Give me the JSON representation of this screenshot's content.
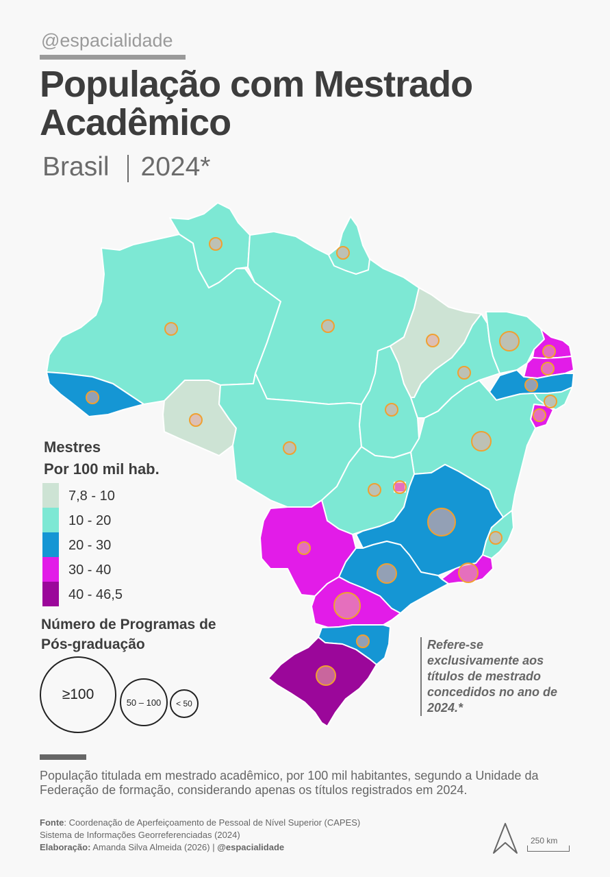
{
  "header": {
    "handle": "@espacialidade",
    "title": "População com Mestrado Acadêmico",
    "region": "Brasil",
    "year": "2024*"
  },
  "colors": {
    "c1": "#cde3d4",
    "c2": "#7de8d4",
    "c3": "#1596d4",
    "c4": "#e21ce8",
    "c5": "#9b079a",
    "bubble_fill": "#e8a7a0",
    "bubble_stroke": "#f0a030"
  },
  "legend_color": {
    "title_line1": "Mestres",
    "title_line2": "Por 100 mil hab.",
    "classes": [
      {
        "label": "7,8 - 10",
        "color": "#cde3d4"
      },
      {
        "label": "10 - 20",
        "color": "#7de8d4"
      },
      {
        "label": "20 - 30",
        "color": "#1596d4"
      },
      {
        "label": "30 - 40",
        "color": "#e21ce8"
      },
      {
        "label": "40 - 46,5",
        "color": "#9b079a"
      }
    ]
  },
  "legend_size": {
    "title_line1": "Número de Programas de",
    "title_line2": "Pós-graduação",
    "sizes": [
      {
        "label": "≥100"
      },
      {
        "label": "50 – 100"
      },
      {
        "label": "< 50"
      }
    ]
  },
  "note": "Refere-se exclusivamente aos títulos de mestrado concedidos no ano de 2024.*",
  "description": "População titulada em mestrado  acadêmico, por 100 mil habitantes, segundo a Unidade da Federação de formação, considerando apenas os títulos registrados em 2024.",
  "source": {
    "fonte_label": "Fonte",
    "fonte_text": ": Coordenação de Aperfeiçoamento de Pessoal de Nível Superior (CAPES)",
    "line2": "Sistema de Informações Georreferenciadas (2024)",
    "elab_label": "Elaboração:",
    "elab_text": " Amanda Silva Almeida (2026) | ",
    "elab_handle": "@espacialidade"
  },
  "scale": {
    "label": "250 km"
  },
  "map_states": [
    {
      "code": "AC",
      "class": 3,
      "programs": "< 50"
    },
    {
      "code": "AM",
      "class": 2,
      "programs": "< 50"
    },
    {
      "code": "RR",
      "class": 2,
      "programs": "< 50"
    },
    {
      "code": "PA",
      "class": 2,
      "programs": "< 50"
    },
    {
      "code": "AP",
      "class": 2,
      "programs": "< 50"
    },
    {
      "code": "RO",
      "class": 1,
      "programs": "< 50"
    },
    {
      "code": "MT",
      "class": 2,
      "programs": "< 50"
    },
    {
      "code": "TO",
      "class": 2,
      "programs": "< 50"
    },
    {
      "code": "MA",
      "class": 1,
      "programs": "< 50"
    },
    {
      "code": "PI",
      "class": 2,
      "programs": "< 50"
    },
    {
      "code": "CE",
      "class": 2,
      "programs": "50 – 100"
    },
    {
      "code": "RN",
      "class": 4,
      "programs": "< 50"
    },
    {
      "code": "PB",
      "class": 4,
      "programs": "< 50"
    },
    {
      "code": "PE",
      "class": 3,
      "programs": "< 50"
    },
    {
      "code": "AL",
      "class": 2,
      "programs": "< 50"
    },
    {
      "code": "SE",
      "class": 4,
      "programs": "< 50"
    },
    {
      "code": "BA",
      "class": 2,
      "programs": "50 – 100"
    },
    {
      "code": "GO",
      "class": 2,
      "programs": "< 50"
    },
    {
      "code": "DF",
      "class": 4,
      "programs": "< 50"
    },
    {
      "code": "MG",
      "class": 3,
      "programs": "≥100"
    },
    {
      "code": "ES",
      "class": 2,
      "programs": "< 50"
    },
    {
      "code": "RJ",
      "class": 4,
      "programs": "50 – 100"
    },
    {
      "code": "SP",
      "class": 3,
      "programs": "50 – 100"
    },
    {
      "code": "MS",
      "class": 4,
      "programs": "< 50"
    },
    {
      "code": "PR",
      "class": 4,
      "programs": "50 – 100"
    },
    {
      "code": "SC",
      "class": 3,
      "programs": "< 50"
    },
    {
      "code": "RS",
      "class": 5,
      "programs": "50 – 100"
    }
  ]
}
